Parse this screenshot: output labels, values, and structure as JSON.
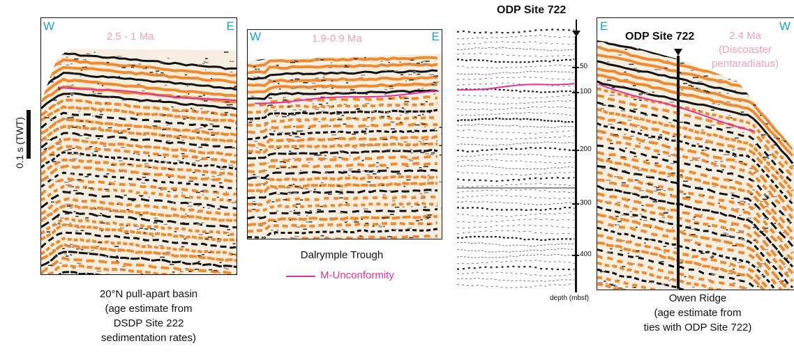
{
  "scale_bar": {
    "label": "0.1 s (TWT)"
  },
  "panel_basin": {
    "west": "W",
    "east": "E",
    "age": "2.5 - 1 Ma",
    "caption": [
      "20°N pull-apart basin",
      "(age estimate from",
      "DSDP Site 222",
      "sedimentation rates)"
    ]
  },
  "panel_trough": {
    "west": "W",
    "east": "E",
    "age": "1.9-0.9 Ma",
    "caption": [
      "Dalrymple Trough"
    ]
  },
  "legend": {
    "item": "M-Unconformity",
    "color": "#e0329a"
  },
  "well_log": {
    "site_label": "ODP Site 722",
    "depth_ticks": [
      "50",
      "100",
      "200",
      "300",
      "400"
    ],
    "depth_axis_label": "depth (mbsf)"
  },
  "panel_owen": {
    "east": "E",
    "west": "W",
    "site_label": "ODP Site 722",
    "age_lines": [
      "2.4 Ma",
      "(Discoaster",
      "pentaradiatus)"
    ],
    "caption": [
      "Owen Ridge",
      "(age estimate from",
      "ties with ODP Site 722)"
    ]
  },
  "colors": {
    "orange": "#f08a2c",
    "black": "#111111",
    "cyan": "#1aa0d6",
    "pink": "#e0329a"
  }
}
